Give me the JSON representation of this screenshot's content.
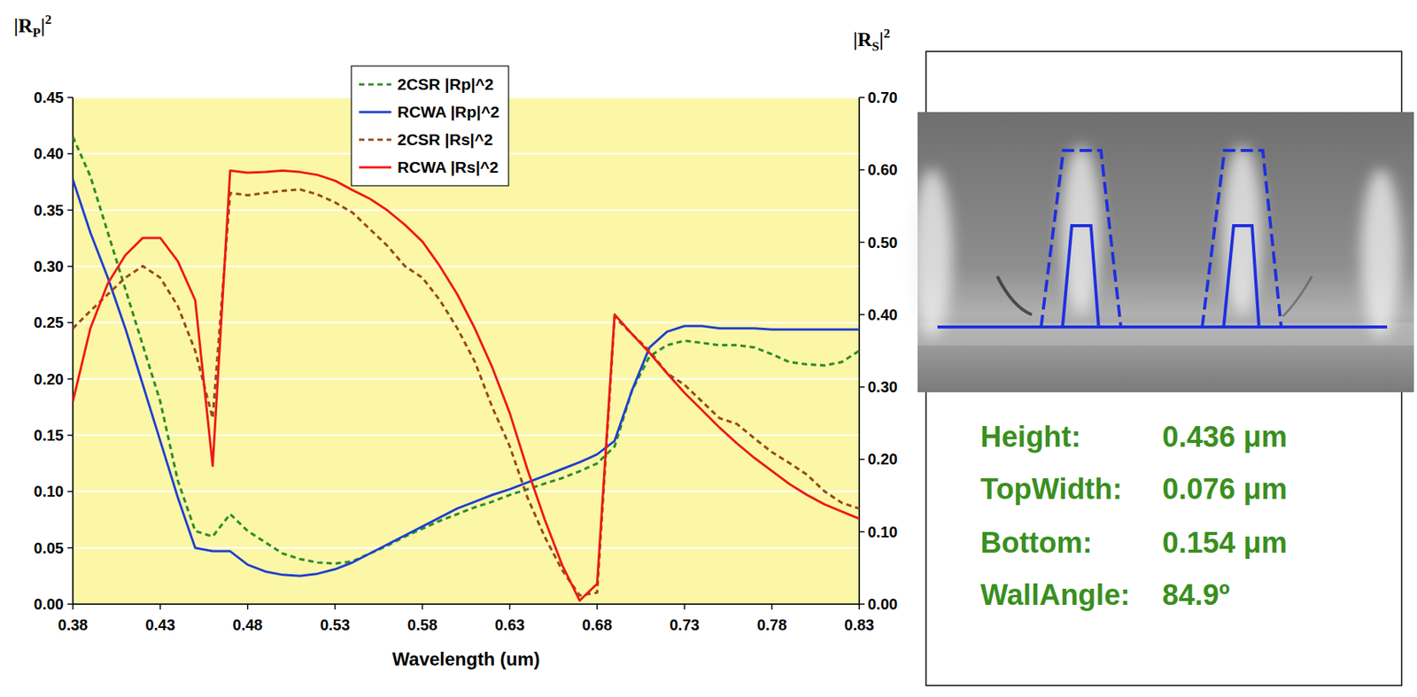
{
  "chart_data": {
    "type": "line",
    "xlabel": "Wavelength (um)",
    "ylabel": {
      "main": "|R",
      "sub": "P",
      "close": "|",
      "sup": "2"
    },
    "y2label": {
      "main": "|R",
      "sub": "S",
      "close": "|",
      "sup": "2"
    },
    "x": [
      0.38,
      0.39,
      0.4,
      0.41,
      0.42,
      0.43,
      0.44,
      0.45,
      0.46,
      0.47,
      0.48,
      0.49,
      0.5,
      0.51,
      0.52,
      0.53,
      0.54,
      0.55,
      0.56,
      0.57,
      0.58,
      0.59,
      0.6,
      0.61,
      0.62,
      0.63,
      0.64,
      0.65,
      0.66,
      0.67,
      0.68,
      0.69,
      0.7,
      0.71,
      0.72,
      0.73,
      0.74,
      0.75,
      0.76,
      0.77,
      0.78,
      0.79,
      0.8,
      0.81,
      0.82,
      0.83
    ],
    "xlim": [
      0.38,
      0.83
    ],
    "xticks": [
      0.38,
      0.43,
      0.48,
      0.53,
      0.58,
      0.63,
      0.68,
      0.73,
      0.78,
      0.83
    ],
    "ylim": [
      0,
      0.45
    ],
    "yticks": [
      {
        "value": 0,
        "label": "0.00"
      },
      {
        "value": 0.05,
        "label": "0.05"
      },
      {
        "value": 0.1,
        "label": "0.10"
      },
      {
        "value": 0.15,
        "label": "0.15"
      },
      {
        "value": 0.2,
        "label": "0.20"
      },
      {
        "value": 0.25,
        "label": "0.25"
      },
      {
        "value": 0.3,
        "label": "0.30"
      },
      {
        "value": 0.35,
        "label": "0.35"
      },
      {
        "value": 0.4,
        "label": "0.40"
      },
      {
        "value": 0.45,
        "label": "0.45"
      }
    ],
    "y2lim": [
      0,
      0.7
    ],
    "y2ticks": [
      {
        "value": 0,
        "label": "0.00"
      },
      {
        "value": 0.1,
        "label": "0.10"
      },
      {
        "value": 0.2,
        "label": "0.20"
      },
      {
        "value": 0.3,
        "label": "0.30"
      },
      {
        "value": 0.4,
        "label": "0.40"
      },
      {
        "value": 0.5,
        "label": "0.50"
      },
      {
        "value": 0.6,
        "label": "0.60"
      },
      {
        "value": 0.7,
        "label": "0.70"
      }
    ],
    "grid": true,
    "legend": "top",
    "series": [
      {
        "name": "2CSR |Rp|^2",
        "color": "#2e8b2e",
        "line_style": "dotted",
        "values": [
          0.415,
          0.38,
          0.33,
          0.28,
          0.23,
          0.18,
          0.11,
          0.065,
          0.06,
          0.08,
          0.065,
          0.055,
          0.045,
          0.04,
          0.037,
          0.036,
          0.038,
          0.045,
          0.052,
          0.06,
          0.067,
          0.074,
          0.08,
          0.086,
          0.091,
          0.097,
          0.102,
          0.107,
          0.112,
          0.118,
          0.125,
          0.14,
          0.19,
          0.22,
          0.23,
          0.234,
          0.232,
          0.23,
          0.23,
          0.228,
          0.222,
          0.215,
          0.213,
          0.212,
          0.215,
          0.225
        ]
      },
      {
        "name": "RCWA |Rp|^2",
        "color": "#1f3fd0",
        "line_style": "solid",
        "values": [
          0.377,
          0.33,
          0.29,
          0.245,
          0.195,
          0.145,
          0.095,
          0.05,
          0.047,
          0.047,
          0.035,
          0.029,
          0.026,
          0.025,
          0.027,
          0.031,
          0.037,
          0.045,
          0.053,
          0.061,
          0.069,
          0.077,
          0.085,
          0.091,
          0.097,
          0.102,
          0.108,
          0.114,
          0.12,
          0.126,
          0.133,
          0.145,
          0.19,
          0.228,
          0.242,
          0.247,
          0.247,
          0.245,
          0.245,
          0.245,
          0.244,
          0.244,
          0.244,
          0.244,
          0.244,
          0.244
        ]
      },
      {
        "name": "2CSR |Rs|^2",
        "color": "#9a4a1c",
        "line_style": "dotted",
        "axis": "y2",
        "values": [
          0.381,
          0.405,
          0.428,
          0.451,
          0.467,
          0.451,
          0.412,
          0.35,
          0.257,
          0.568,
          0.565,
          0.568,
          0.571,
          0.573,
          0.566,
          0.555,
          0.541,
          0.518,
          0.495,
          0.467,
          0.451,
          0.42,
          0.381,
          0.335,
          0.272,
          0.218,
          0.148,
          0.093,
          0.047,
          0.012,
          0.016,
          0.397,
          0.373,
          0.35,
          0.319,
          0.303,
          0.28,
          0.257,
          0.249,
          0.229,
          0.21,
          0.195,
          0.179,
          0.156,
          0.14,
          0.132
        ]
      },
      {
        "name": "RCWA |Rs|^2",
        "color": "#f01818",
        "line_style": "solid",
        "axis": "y2",
        "values": [
          0.28,
          0.381,
          0.443,
          0.482,
          0.506,
          0.506,
          0.474,
          0.42,
          0.191,
          0.599,
          0.596,
          0.597,
          0.599,
          0.597,
          0.593,
          0.585,
          0.572,
          0.56,
          0.544,
          0.524,
          0.501,
          0.467,
          0.428,
          0.381,
          0.327,
          0.264,
          0.187,
          0.117,
          0.054,
          0.005,
          0.028,
          0.4,
          0.373,
          0.347,
          0.319,
          0.292,
          0.268,
          0.244,
          0.222,
          0.202,
          0.184,
          0.166,
          0.151,
          0.138,
          0.128,
          0.118
        ]
      }
    ],
    "annotations": [
      {
        "label": "Height:",
        "value": "0.436 μm"
      },
      {
        "label": "TopWidth:",
        "value": "0.076 μm"
      },
      {
        "label": "Bottom:",
        "value": "0.154 μm"
      },
      {
        "label": "WallAngle:",
        "value": "84.9º"
      }
    ]
  }
}
